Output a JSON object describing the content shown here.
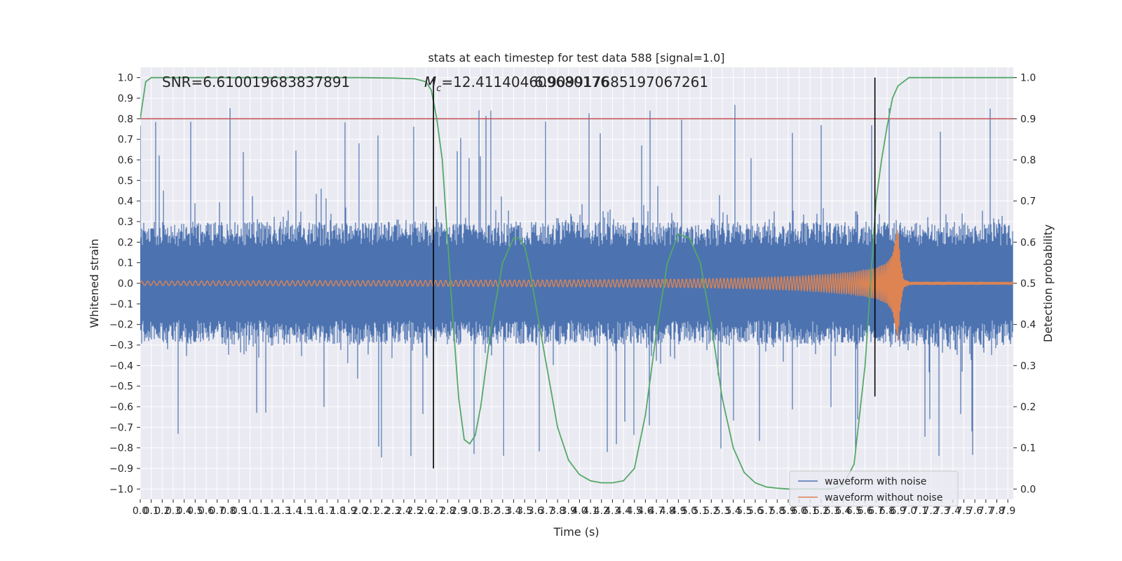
{
  "chart_data": {
    "type": "line",
    "title": "stats at each timestep for test data 588 [signal=1.0]",
    "xlabel": "Time (s)",
    "ylabel": "Whitened strain",
    "y2label": "Detection probability",
    "xlim": [
      0.0,
      7.95
    ],
    "ylim": [
      -1.05,
      1.05
    ],
    "y2lim": [
      -0.025,
      1.025
    ],
    "x_tick_step": 0.1,
    "y_ticks": [
      -1.0,
      -0.9,
      -0.8,
      -0.7,
      -0.6,
      -0.5,
      -0.4,
      -0.3,
      -0.2,
      -0.1,
      0.0,
      0.1,
      0.2,
      0.3,
      0.4,
      0.5,
      0.6,
      0.7,
      0.8,
      0.9,
      1.0
    ],
    "y2_ticks": [
      0.0,
      0.1,
      0.2,
      0.3,
      0.4,
      0.5,
      0.6,
      0.7,
      0.8,
      0.9,
      1.0
    ],
    "grid": true,
    "legend_position": "lower-right",
    "annotations": {
      "snr": "SNR=6.610019683837891",
      "mc_prefix": "M",
      "mc_sub": "c",
      "mc_value": "=12.411404609680176",
      "overlap_value": "6.909917685197067261"
    },
    "threshold": {
      "axis": "right",
      "value": 0.9,
      "color": "#c44e52"
    },
    "vertical_markers": [
      {
        "x": 2.67,
        "y_from": -0.9,
        "y_to": 1.0
      },
      {
        "x": 6.69,
        "y_from": -0.55,
        "y_to": 1.0
      }
    ],
    "series": [
      {
        "name": "waveform with noise",
        "color": "#4c72b0",
        "kind": "noise",
        "typical_amplitude": 0.4,
        "peak_amplitude": 1.0
      },
      {
        "name": "waveform without noise",
        "color": "#dd8452",
        "kind": "chirp",
        "envelope": {
          "t": [
            0.0,
            1.0,
            2.0,
            3.0,
            4.0,
            5.0,
            5.5,
            6.0,
            6.3,
            6.5,
            6.7,
            6.8,
            6.85,
            6.88,
            6.9,
            6.92,
            6.95,
            7.0,
            7.95
          ],
          "a": [
            0.01,
            0.012,
            0.013,
            0.015,
            0.017,
            0.021,
            0.026,
            0.035,
            0.045,
            0.055,
            0.075,
            0.1,
            0.14,
            0.22,
            0.28,
            0.12,
            0.02,
            0.005,
            0.004
          ]
        },
        "frequency": {
          "t": [
            0.0,
            3.0,
            5.0,
            6.0,
            6.5,
            6.8,
            6.9
          ],
          "f": [
            18,
            22,
            28,
            36,
            48,
            70,
            110
          ]
        }
      },
      {
        "name": "",
        "axis": "right",
        "color": "#55a868",
        "kind": "probability",
        "x": [
          0.0,
          0.05,
          0.1,
          0.2,
          0.5,
          1.0,
          1.5,
          2.0,
          2.3,
          2.5,
          2.6,
          2.65,
          2.7,
          2.75,
          2.8,
          2.85,
          2.9,
          2.95,
          3.0,
          3.05,
          3.1,
          3.15,
          3.2,
          3.3,
          3.4,
          3.45,
          3.5,
          3.55,
          3.6,
          3.7,
          3.8,
          3.9,
          4.0,
          4.1,
          4.2,
          4.3,
          4.4,
          4.5,
          4.6,
          4.7,
          4.8,
          4.9,
          5.0,
          5.1,
          5.2,
          5.3,
          5.4,
          5.5,
          5.6,
          5.7,
          5.8,
          5.9,
          6.0,
          6.1,
          6.2,
          6.3,
          6.4,
          6.5,
          6.6,
          6.7,
          6.75,
          6.8,
          6.85,
          6.9,
          7.0,
          7.2,
          7.5,
          7.95
        ],
        "y": [
          0.9,
          0.99,
          1.0,
          1.0,
          1.0,
          1.0,
          1.0,
          1.0,
          0.999,
          0.997,
          0.99,
          0.97,
          0.9,
          0.8,
          0.6,
          0.4,
          0.22,
          0.12,
          0.11,
          0.13,
          0.2,
          0.3,
          0.4,
          0.55,
          0.61,
          0.61,
          0.59,
          0.53,
          0.45,
          0.3,
          0.15,
          0.07,
          0.035,
          0.02,
          0.015,
          0.015,
          0.02,
          0.05,
          0.18,
          0.38,
          0.55,
          0.62,
          0.61,
          0.55,
          0.4,
          0.22,
          0.1,
          0.04,
          0.015,
          0.005,
          0.002,
          0.0,
          0.0,
          0.0,
          0.0,
          0.0,
          0.01,
          0.06,
          0.3,
          0.7,
          0.8,
          0.88,
          0.95,
          0.98,
          1.0,
          1.0,
          1.0,
          1.0
        ]
      }
    ]
  }
}
